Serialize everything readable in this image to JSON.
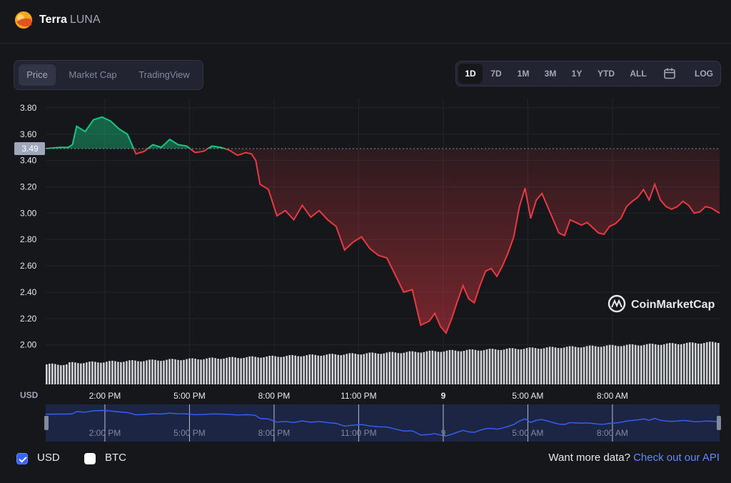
{
  "header": {
    "name": "Terra",
    "symbol": "LUNA"
  },
  "view_tabs": [
    {
      "label": "Price",
      "active": true
    },
    {
      "label": "Market Cap",
      "active": false
    },
    {
      "label": "TradingView",
      "active": false
    }
  ],
  "ranges": [
    {
      "label": "1D",
      "active": true
    },
    {
      "label": "7D",
      "active": false
    },
    {
      "label": "1M",
      "active": false
    },
    {
      "label": "3M",
      "active": false
    },
    {
      "label": "1Y",
      "active": false
    },
    {
      "label": "YTD",
      "active": false
    },
    {
      "label": "ALL",
      "active": false
    }
  ],
  "calendar_icon": "calendar-icon",
  "log_label": "LOG",
  "colors": {
    "up": "#16c784",
    "down": "#ea3943",
    "accent": "#6188ff",
    "background": "#16171a"
  },
  "chart_data": {
    "type": "line",
    "y_ticks": [
      "3.80",
      "3.60",
      "3.40",
      "3.20",
      "3.00",
      "2.80",
      "2.60",
      "2.40",
      "2.20",
      "2.00"
    ],
    "ylim": [
      1.7,
      3.87
    ],
    "baseline": 3.49,
    "baseline_label": "3.49",
    "currency_label": "USD",
    "x_ticks": [
      {
        "x": 14,
        "label": "2:00 PM"
      },
      {
        "x": 17,
        "label": "5:00 PM"
      },
      {
        "x": 20,
        "label": "8:00 PM"
      },
      {
        "x": 23,
        "label": "11:00 PM"
      },
      {
        "x": 26,
        "label": "9"
      },
      {
        "x": 29,
        "label": "5:00 AM"
      },
      {
        "x": 32,
        "label": "8:00 AM"
      }
    ],
    "xlim": [
      11.9,
      35.8
    ],
    "x": [
      11.9,
      12.4,
      12.7,
      12.85,
      13.0,
      13.3,
      13.6,
      13.9,
      14.2,
      14.5,
      14.8,
      15.1,
      15.4,
      15.7,
      16.0,
      16.3,
      16.6,
      16.9,
      17.2,
      17.5,
      17.8,
      18.1,
      18.4,
      18.7,
      19.0,
      19.2,
      19.35,
      19.5,
      19.8,
      20.1,
      20.4,
      20.7,
      21.0,
      21.3,
      21.6,
      21.9,
      22.2,
      22.5,
      22.8,
      23.1,
      23.4,
      23.7,
      24.0,
      24.3,
      24.6,
      24.9,
      25.2,
      25.5,
      25.7,
      25.9,
      26.1,
      26.3,
      26.5,
      26.7,
      26.9,
      27.1,
      27.3,
      27.5,
      27.7,
      27.9,
      28.1,
      28.3,
      28.5,
      28.7,
      28.9,
      29.1,
      29.3,
      29.5,
      29.7,
      29.9,
      30.1,
      30.3,
      30.5,
      30.7,
      30.9,
      31.1,
      31.3,
      31.5,
      31.7,
      31.9,
      32.1,
      32.3,
      32.5,
      32.7,
      32.9,
      33.1,
      33.3,
      33.5,
      33.7,
      33.9,
      34.1,
      34.3,
      34.5,
      34.7,
      34.9,
      35.1,
      35.3,
      35.5,
      35.8
    ],
    "y": [
      3.49,
      3.5,
      3.5,
      3.52,
      3.66,
      3.62,
      3.71,
      3.73,
      3.7,
      3.64,
      3.6,
      3.45,
      3.47,
      3.52,
      3.5,
      3.56,
      3.52,
      3.51,
      3.46,
      3.47,
      3.51,
      3.5,
      3.48,
      3.44,
      3.46,
      3.45,
      3.4,
      3.22,
      3.18,
      2.98,
      3.02,
      2.95,
      3.06,
      2.97,
      3.02,
      2.95,
      2.9,
      2.72,
      2.78,
      2.82,
      2.73,
      2.68,
      2.66,
      2.53,
      2.4,
      2.42,
      2.15,
      2.18,
      2.24,
      2.14,
      2.09,
      2.2,
      2.33,
      2.45,
      2.35,
      2.32,
      2.45,
      2.56,
      2.58,
      2.52,
      2.6,
      2.7,
      2.82,
      3.05,
      3.19,
      2.96,
      3.1,
      3.15,
      3.05,
      2.95,
      2.85,
      2.83,
      2.95,
      2.93,
      2.91,
      2.93,
      2.89,
      2.85,
      2.84,
      2.9,
      2.92,
      2.96,
      3.05,
      3.09,
      3.12,
      3.18,
      3.1,
      3.22,
      3.1,
      3.05,
      3.03,
      3.05,
      3.09,
      3.06,
      3.0,
      3.01,
      3.05,
      3.04,
      3.0
    ],
    "volume_ratio": 0.5,
    "navigator_x_ticks": [
      "2:00 PM",
      "5:00 PM",
      "8:00 PM",
      "11:00 PM",
      "9",
      "5:00 AM",
      "8:00 AM"
    ],
    "watermark": "CoinMarketCap"
  },
  "footer": {
    "usd_label": "USD",
    "usd_checked": true,
    "btc_label": "BTC",
    "btc_checked": false,
    "more_text": "Want more data?",
    "api_link": "Check out our API"
  }
}
